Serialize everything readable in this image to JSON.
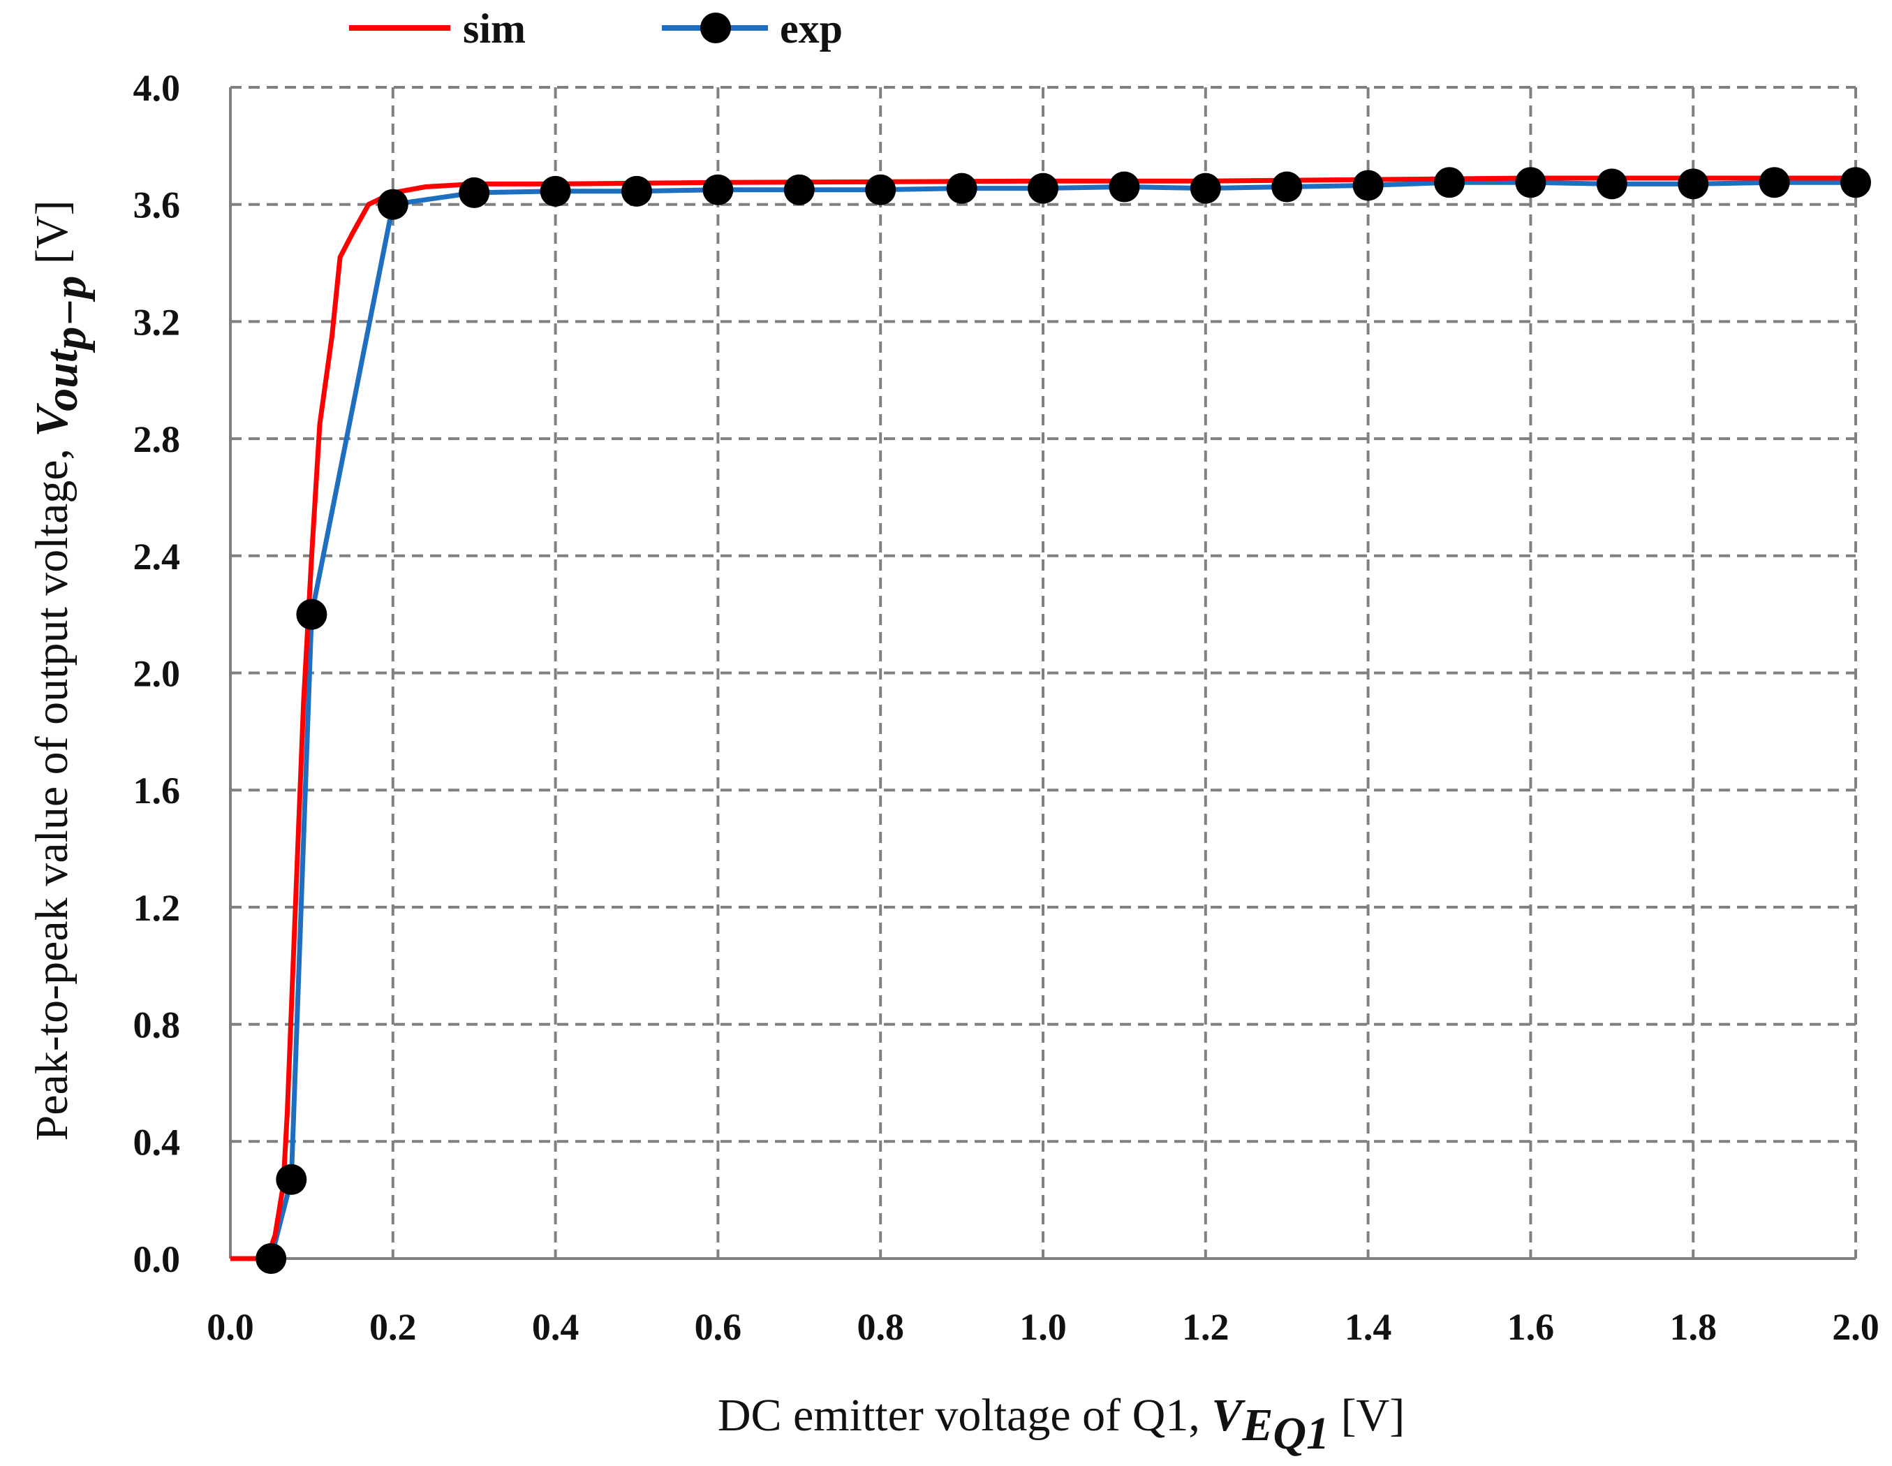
{
  "chart_data": {
    "type": "line",
    "x_axis": {
      "label_prefix": "DC emitter voltage of Q1, ",
      "label_var": "V",
      "label_sub": "E",
      "label_subsub": "Q1",
      "label_unit": " [V]",
      "range": [
        0,
        2.0
      ],
      "ticks": [
        "0.0",
        "0.2",
        "0.4",
        "0.6",
        "0.8",
        "1.0",
        "1.2",
        "1.4",
        "1.6",
        "1.8",
        "2.0"
      ]
    },
    "y_axis": {
      "label_prefix": "Peak-to-peak value of output voltage, ",
      "label_var": "V",
      "label_sub": "out",
      "label_subsub": "p−p",
      "label_unit": " [V]",
      "range": [
        0,
        4.0
      ],
      "ticks": [
        "0.0",
        "0.4",
        "0.8",
        "1.2",
        "1.6",
        "2.0",
        "2.4",
        "2.8",
        "3.2",
        "3.6",
        "4.0"
      ]
    },
    "grid": true,
    "legend_position": "top",
    "series": [
      {
        "name": "sim",
        "color": "#ff0000",
        "marker": "none",
        "points": [
          [
            0.0,
            0.0
          ],
          [
            0.045,
            0.0
          ],
          [
            0.055,
            0.08
          ],
          [
            0.065,
            0.25
          ],
          [
            0.07,
            0.5
          ],
          [
            0.08,
            1.2
          ],
          [
            0.09,
            1.9
          ],
          [
            0.1,
            2.4
          ],
          [
            0.11,
            2.85
          ],
          [
            0.125,
            3.15
          ],
          [
            0.135,
            3.42
          ],
          [
            0.15,
            3.5
          ],
          [
            0.17,
            3.6
          ],
          [
            0.2,
            3.64
          ],
          [
            0.24,
            3.66
          ],
          [
            0.3,
            3.67
          ],
          [
            0.4,
            3.67
          ],
          [
            0.6,
            3.675
          ],
          [
            1.0,
            3.68
          ],
          [
            1.2,
            3.68
          ],
          [
            1.6,
            3.69
          ],
          [
            2.0,
            3.69
          ]
        ]
      },
      {
        "name": "exp",
        "color": "#1f6fc0",
        "marker": "circle",
        "marker_color": "#000000",
        "points": [
          [
            0.05,
            0.0
          ],
          [
            0.075,
            0.27
          ],
          [
            0.1,
            2.2
          ],
          [
            0.2,
            3.6
          ],
          [
            0.3,
            3.64
          ],
          [
            0.4,
            3.645
          ],
          [
            0.5,
            3.645
          ],
          [
            0.6,
            3.65
          ],
          [
            0.7,
            3.65
          ],
          [
            0.8,
            3.65
          ],
          [
            0.9,
            3.655
          ],
          [
            1.0,
            3.655
          ],
          [
            1.1,
            3.66
          ],
          [
            1.2,
            3.655
          ],
          [
            1.3,
            3.66
          ],
          [
            1.4,
            3.665
          ],
          [
            1.5,
            3.675
          ],
          [
            1.6,
            3.675
          ],
          [
            1.7,
            3.67
          ],
          [
            1.8,
            3.67
          ],
          [
            1.9,
            3.675
          ],
          [
            2.0,
            3.675
          ]
        ]
      }
    ]
  }
}
